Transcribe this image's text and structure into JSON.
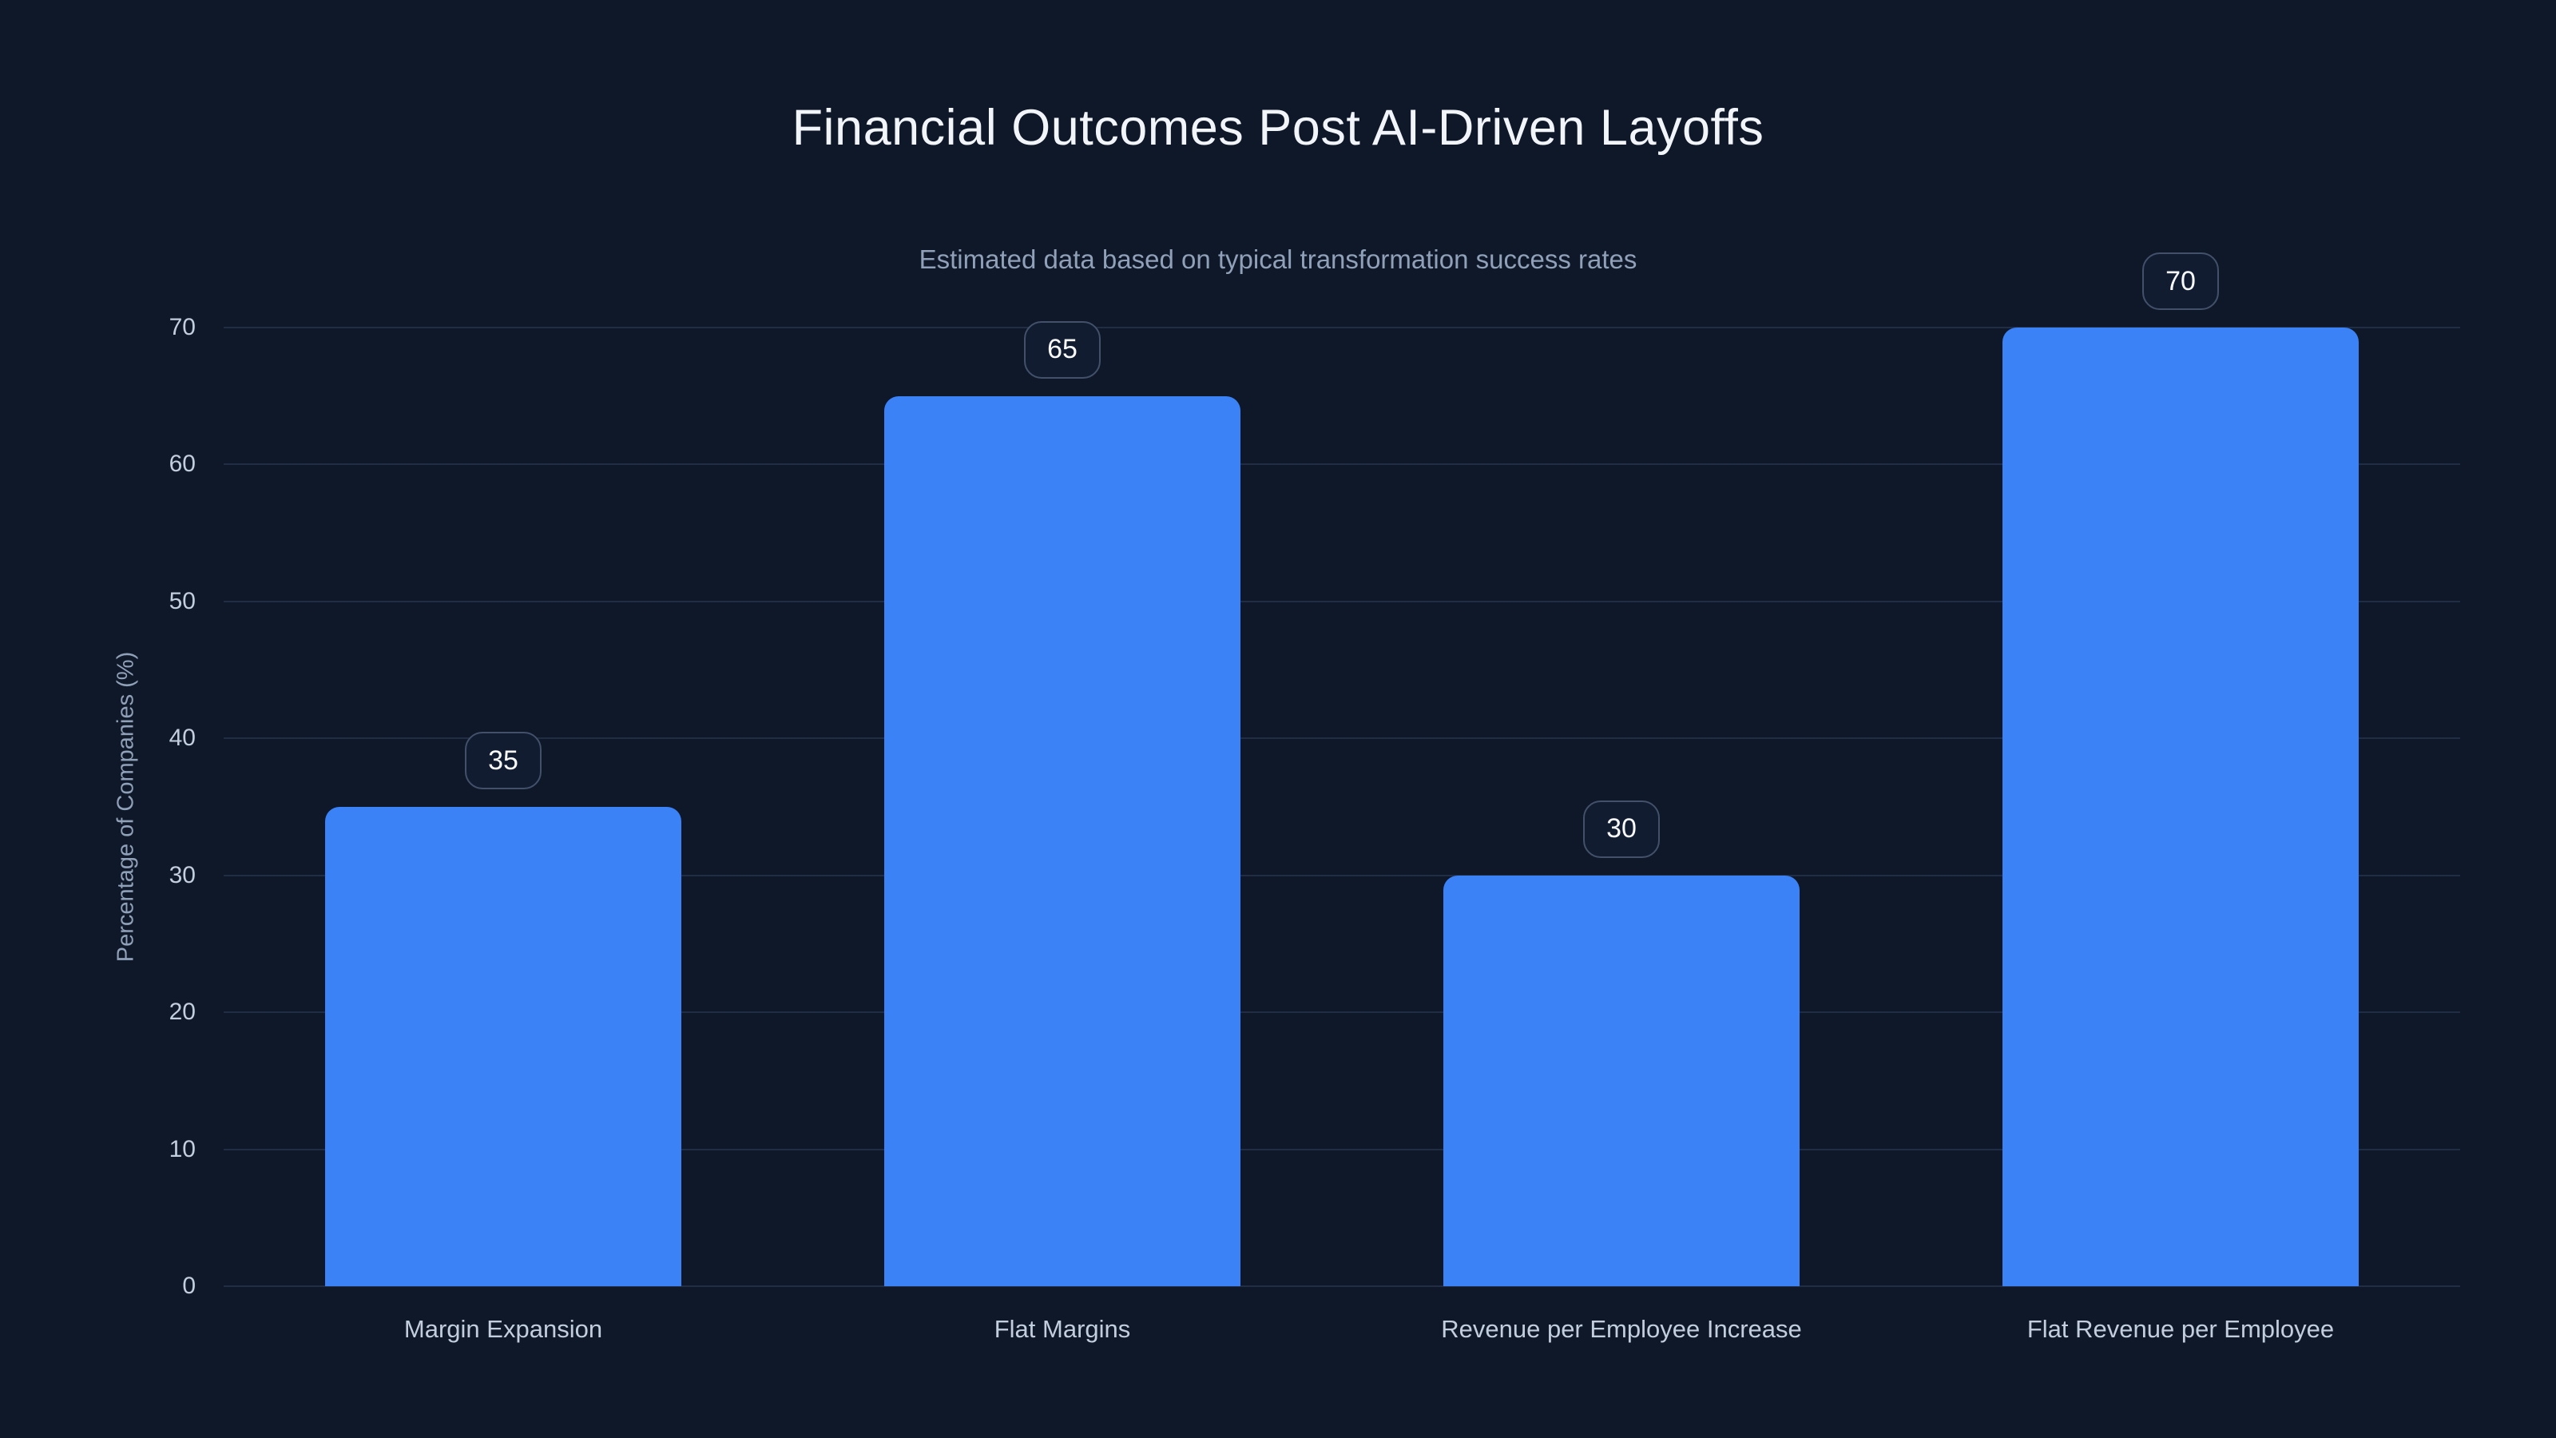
{
  "header": {
    "title": "Financial Outcomes Post AI-Driven Layoffs",
    "subtitle": "Estimated data based on typical transformation success rates"
  },
  "chart_data": {
    "type": "bar",
    "title": "Financial Outcomes Post AI-Driven Layoffs",
    "subtitle": "Estimated data based on typical transformation success rates",
    "categories": [
      "Margin Expansion",
      "Flat Margins",
      "Revenue per Employee Increase",
      "Flat Revenue per Employee"
    ],
    "values": [
      35,
      65,
      30,
      70
    ],
    "value_labels": [
      "35",
      "65",
      "30",
      "70"
    ],
    "xlabel": "",
    "ylabel": "Percentage of Companies (%)",
    "ylim": [
      0,
      70
    ],
    "yticks": [
      0,
      10,
      20,
      30,
      40,
      50,
      60,
      70
    ],
    "grid": "horizontal",
    "legend": "none"
  },
  "colors": {
    "background": "#0f1828",
    "bar": "#3b82f6",
    "grid": "#212d44",
    "title": "#f1f5f9",
    "subtitle": "#8fa0b8",
    "axis_label": "#8fa0b8",
    "tick": "#c2cddd",
    "badge_border": "#42506a",
    "badge_bg": "#111c31",
    "badge_text": "#f8fafc"
  }
}
